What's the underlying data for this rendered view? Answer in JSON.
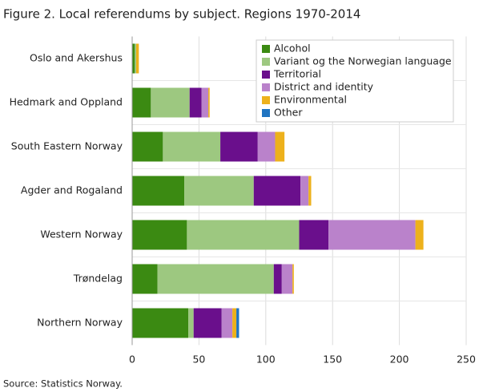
{
  "chart_data": {
    "type": "stacked-bar-horizontal",
    "title": "Figure 2. Local referendums by subject. Regions 1970-2014",
    "source": "Source: Statistics Norway.",
    "categories": [
      "Oslo and Akershus",
      "Hedmark and Oppland",
      "South Eastern Norway",
      "Agder and Rogaland",
      "Western Norway",
      "Trøndelag",
      "Northern Norway"
    ],
    "series": [
      {
        "name": "Alcohol",
        "color": "#3b8a12",
        "values": [
          2,
          14,
          23,
          39,
          41,
          19,
          42
        ]
      },
      {
        "name": "Variant og the Norwegian language",
        "color": "#9dc880",
        "values": [
          1,
          29,
          43,
          52,
          84,
          87,
          4
        ]
      },
      {
        "name": "Territorial",
        "color": "#6a0f8c",
        "values": [
          0,
          9,
          28,
          35,
          22,
          6,
          21
        ]
      },
      {
        "name": "District and identity",
        "color": "#ba82cb",
        "values": [
          0,
          5,
          13,
          6,
          65,
          8,
          8
        ]
      },
      {
        "name": "Environmental",
        "color": "#edb11c",
        "values": [
          2,
          1,
          7,
          2,
          6,
          1,
          3
        ]
      },
      {
        "name": "Other",
        "color": "#1f74c1",
        "values": [
          0,
          0,
          0,
          0,
          0,
          0,
          2
        ]
      }
    ],
    "xlim": [
      0,
      250
    ],
    "xticks": [
      0,
      50,
      100,
      150,
      200,
      250
    ],
    "grid": true,
    "legend": "top-right"
  }
}
